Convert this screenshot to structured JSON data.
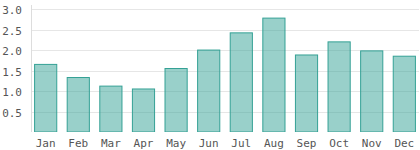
{
  "chart_data": {
    "type": "bar",
    "categories": [
      "Jan",
      "Feb",
      "Mar",
      "Apr",
      "May",
      "Jun",
      "Jul",
      "Aug",
      "Sep",
      "Oct",
      "Nov",
      "Dec"
    ],
    "values": [
      1.65,
      1.33,
      1.12,
      1.05,
      1.55,
      2.0,
      2.42,
      2.78,
      1.88,
      2.2,
      1.98,
      1.85
    ],
    "color": "#34a195",
    "ylim": [
      0,
      3.1
    ],
    "yticks": [
      0.5,
      {
        "value": 1,
        "label": "1.0"
      },
      1.5,
      {
        "value": 2,
        "label": "2.0"
      },
      2.5,
      {
        "value": 3,
        "label": "3.0"
      }
    ],
    "grid": true
  }
}
